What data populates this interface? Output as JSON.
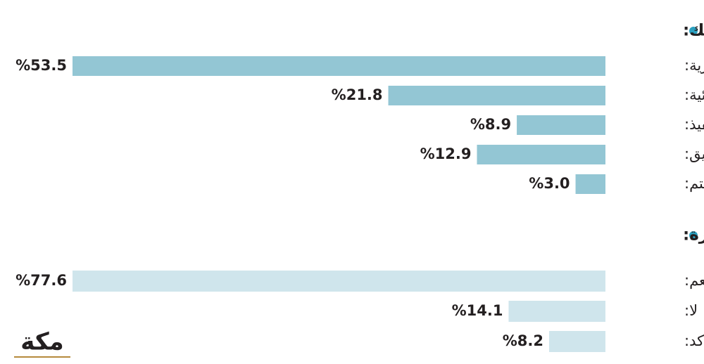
{
  "logo": "مكة",
  "chart_data": [
    {
      "type": "bar",
      "orientation": "horizontal",
      "title": "في رأيك أي خدمات المؤشرات التفاعلية من خلال البوابة مهمة بالنسبة إليك:",
      "categories": [
        "عقارية:",
        "قضائية:",
        "تنفيذ:",
        "توثيق:",
        "غير مهتم:"
      ],
      "values": [
        53.5,
        21.8,
        8.9,
        12.9,
        3.0
      ],
      "value_labels": [
        "%53.5",
        "%21.8",
        "%8.9",
        "%12.9",
        "%3.0"
      ],
      "color": "#93c6d4"
    },
    {
      "type": "bar",
      "orientation": "horizontal",
      "title": "هل ساعدت المؤشرات العدلية بزيادة وعيك عن واقع العمل وحجمه في الوزارة:",
      "categories": [
        "نعم:",
        "لا:",
        "غير متأكد:"
      ],
      "values": [
        77.6,
        14.1,
        8.2
      ],
      "value_labels": [
        "%77.6",
        "%14.1",
        "%8.2"
      ],
      "color": "#cfe5ec"
    }
  ]
}
